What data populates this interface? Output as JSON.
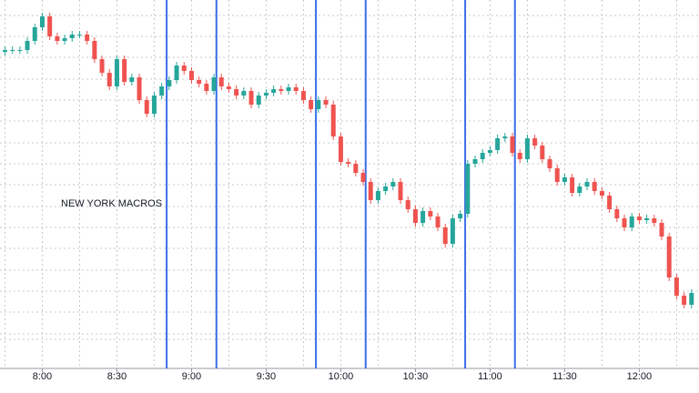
{
  "chart_data": {
    "type": "candlestick",
    "annotation": "NEW YORK MACROS",
    "up_color": "#26a69a",
    "down_color": "#ef5350",
    "marker_color": "#3a6ee8",
    "grid": true,
    "xlim": [
      463,
      744
    ],
    "ylim": [
      0,
      405
    ],
    "xticks": [
      {
        "value": 480,
        "label": "8:00"
      },
      {
        "value": 510,
        "label": "8:30"
      },
      {
        "value": 540,
        "label": "9:00"
      },
      {
        "value": 570,
        "label": "9:30"
      },
      {
        "value": 600,
        "label": "10:00"
      },
      {
        "value": 630,
        "label": "10:30"
      },
      {
        "value": 660,
        "label": "11:00"
      },
      {
        "value": 690,
        "label": "11:30"
      },
      {
        "value": 720,
        "label": "12:00"
      }
    ],
    "xgrid": [
      465,
      480,
      495,
      510,
      525,
      540,
      555,
      570,
      585,
      600,
      615,
      630,
      645,
      660,
      675,
      690,
      705,
      720,
      735
    ],
    "ygrid": [
      388,
      365,
      342,
      318,
      295,
      272,
      248,
      225,
      202,
      178,
      155,
      132,
      108,
      85,
      62,
      38,
      32
    ],
    "markers": [
      530,
      550,
      590,
      610,
      650,
      670
    ],
    "x": [
      465,
      468,
      471,
      474,
      477,
      480,
      483,
      486,
      489,
      492,
      495,
      498,
      501,
      504,
      507,
      510,
      513,
      516,
      519,
      522,
      525,
      528,
      531,
      534,
      537,
      540,
      543,
      546,
      549,
      552,
      555,
      558,
      561,
      564,
      567,
      570,
      573,
      576,
      579,
      582,
      585,
      588,
      591,
      594,
      597,
      600,
      603,
      606,
      609,
      612,
      615,
      618,
      621,
      624,
      627,
      630,
      633,
      636,
      639,
      642,
      645,
      648,
      651,
      654,
      657,
      660,
      663,
      666,
      669,
      672,
      675,
      678,
      681,
      684,
      687,
      690,
      693,
      696,
      699,
      702,
      705,
      708,
      711,
      714,
      717,
      720,
      723,
      726,
      729,
      732,
      735,
      738,
      741
    ],
    "open": [
      348,
      350,
      350,
      350,
      360,
      375,
      387,
      365,
      360,
      363,
      367,
      367,
      360,
      340,
      325,
      310,
      340,
      315,
      320,
      295,
      280,
      300,
      310,
      317,
      333,
      327,
      317,
      313,
      305,
      320,
      310,
      307,
      300,
      305,
      290,
      300,
      303,
      307,
      305,
      309,
      305,
      295,
      285,
      295,
      290,
      255,
      227,
      225,
      215,
      205,
      185,
      195,
      200,
      205,
      185,
      175,
      160,
      173,
      167,
      155,
      137,
      165,
      170,
      225,
      230,
      237,
      240,
      253,
      255,
      237,
      230,
      253,
      245,
      230,
      220,
      205,
      210,
      193,
      200,
      205,
      195,
      190,
      175,
      165,
      155,
      167,
      163,
      165,
      160,
      145,
      100,
      80,
      70
    ],
    "high": [
      354,
      354,
      354,
      364,
      379,
      391,
      391,
      369,
      367,
      371,
      371,
      371,
      364,
      344,
      329,
      344,
      344,
      324,
      324,
      299,
      304,
      314,
      321,
      337,
      337,
      331,
      321,
      317,
      324,
      324,
      314,
      311,
      309,
      309,
      304,
      307,
      311,
      311,
      313,
      313,
      309,
      299,
      299,
      299,
      294,
      259,
      231,
      229,
      219,
      209,
      199,
      204,
      209,
      209,
      189,
      179,
      177,
      177,
      171,
      159,
      169,
      174,
      229,
      234,
      241,
      244,
      257,
      259,
      259,
      241,
      257,
      257,
      249,
      234,
      224,
      214,
      214,
      204,
      209,
      209,
      199,
      194,
      179,
      169,
      171,
      171,
      169,
      169,
      164,
      149,
      104,
      84,
      87
    ],
    "low": [
      344,
      346,
      346,
      346,
      356,
      371,
      361,
      356,
      356,
      359,
      363,
      356,
      336,
      321,
      306,
      306,
      311,
      311,
      291,
      276,
      276,
      296,
      306,
      313,
      323,
      313,
      309,
      301,
      301,
      306,
      303,
      296,
      296,
      286,
      286,
      296,
      299,
      301,
      301,
      301,
      291,
      281,
      281,
      286,
      251,
      223,
      221,
      211,
      201,
      181,
      181,
      191,
      196,
      181,
      171,
      156,
      156,
      163,
      151,
      133,
      133,
      161,
      166,
      221,
      226,
      233,
      236,
      249,
      233,
      226,
      226,
      241,
      226,
      216,
      201,
      201,
      189,
      189,
      196,
      191,
      186,
      171,
      161,
      151,
      151,
      159,
      159,
      156,
      141,
      96,
      76,
      66,
      66
    ],
    "close": [
      350,
      350,
      350,
      360,
      375,
      387,
      365,
      360,
      363,
      367,
      367,
      360,
      340,
      325,
      310,
      340,
      315,
      320,
      295,
      280,
      300,
      310,
      317,
      333,
      327,
      317,
      313,
      305,
      320,
      310,
      307,
      300,
      305,
      290,
      300,
      303,
      307,
      305,
      309,
      305,
      295,
      285,
      295,
      290,
      255,
      227,
      225,
      215,
      205,
      185,
      195,
      200,
      205,
      185,
      175,
      160,
      173,
      167,
      155,
      137,
      165,
      170,
      225,
      230,
      237,
      240,
      253,
      255,
      237,
      230,
      253,
      245,
      230,
      220,
      205,
      210,
      193,
      200,
      205,
      195,
      190,
      175,
      165,
      155,
      167,
      163,
      165,
      160,
      145,
      100,
      80,
      70,
      83
    ]
  }
}
